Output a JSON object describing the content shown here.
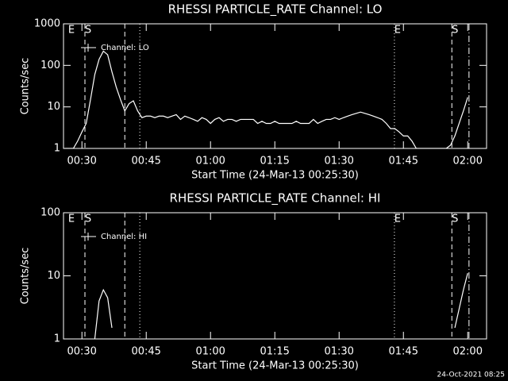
{
  "chart_data": [
    {
      "type": "line",
      "title": "RHESSI PARTICLE_RATE Channel: LO",
      "x_label": "Start Time (24-Mar-13 00:25:30)",
      "y_label": "Counts/sec",
      "ylog": true,
      "ylim": [
        1,
        1000
      ],
      "yticks": [
        1,
        10,
        100,
        1000
      ],
      "xlim": [
        25.7,
        124.4
      ],
      "xticks": [
        {
          "value": 30,
          "label": "00:30"
        },
        {
          "value": 45,
          "label": "00:45"
        },
        {
          "value": 60,
          "label": "01:00"
        },
        {
          "value": 75,
          "label": "01:15"
        },
        {
          "value": 90,
          "label": "01:30"
        },
        {
          "value": 105,
          "label": "01:45"
        },
        {
          "value": 120,
          "label": "02:00"
        }
      ],
      "legend": "upper left",
      "markers": [
        {
          "x": 26.8,
          "label": "E"
        },
        {
          "x": 30.7,
          "style": "dashed",
          "label": "S"
        },
        {
          "x": 40.0,
          "style": "dashed"
        },
        {
          "x": 43.5,
          "style": "dotted"
        },
        {
          "x": 102.9,
          "style": "dotted",
          "label": "E"
        },
        {
          "x": 116.3,
          "style": "dashed",
          "label": "S"
        },
        {
          "x": 120.3,
          "style": "dashdot"
        }
      ],
      "x": [
        26,
        27,
        28,
        29,
        30,
        31,
        32,
        33,
        34,
        35,
        36,
        37,
        38,
        39,
        40,
        41,
        42,
        43,
        44,
        45,
        46,
        47,
        48,
        49,
        50,
        51,
        52,
        53,
        54,
        55,
        56,
        57,
        58,
        59,
        60,
        61,
        62,
        63,
        64,
        65,
        66,
        67,
        68,
        69,
        70,
        71,
        72,
        73,
        74,
        75,
        76,
        77,
        78,
        79,
        80,
        81,
        82,
        83,
        84,
        85,
        86,
        87,
        88,
        89,
        90,
        91,
        92,
        93,
        94,
        95,
        96,
        97,
        98,
        99,
        100,
        101,
        102,
        103,
        104,
        105,
        106,
        107,
        108,
        109,
        110,
        111,
        112,
        113,
        114,
        115,
        116,
        117,
        118,
        119,
        120
      ],
      "series": [
        {
          "name": "Channel: LO",
          "color": "#ffffff",
          "values": [
            1,
            1,
            1,
            1.5,
            2.5,
            4,
            15,
            60,
            140,
            220,
            180,
            70,
            30,
            15,
            8,
            12,
            14,
            8,
            5.5,
            6,
            6,
            5.5,
            6,
            6,
            5.5,
            6,
            6.5,
            5,
            6,
            5.5,
            5,
            4.5,
            5.5,
            5,
            4,
            5,
            5.5,
            4.5,
            5,
            5,
            4.5,
            5,
            5,
            5,
            5,
            4,
            4.5,
            4,
            4,
            4.5,
            4,
            4,
            4,
            4,
            4.5,
            4,
            4,
            4,
            5,
            4,
            4.5,
            5,
            5,
            5.5,
            5,
            5.5,
            6,
            6.5,
            7,
            7.5,
            7,
            6.5,
            6,
            5.5,
            5,
            4,
            3,
            3,
            2.5,
            2,
            2,
            1.5,
            1,
            1,
            1,
            1,
            1,
            1,
            1,
            1,
            1.2,
            2,
            4,
            8,
            17
          ]
        }
      ]
    },
    {
      "type": "line",
      "title": "RHESSI PARTICLE_RATE Channel: HI",
      "x_label": "Start Time (24-Mar-13 00:25:30)",
      "y_label": "Counts/sec",
      "ylog": true,
      "ylim": [
        1,
        100
      ],
      "yticks": [
        1,
        10,
        100
      ],
      "xlim": [
        25.7,
        124.4
      ],
      "xticks": [
        {
          "value": 30,
          "label": "00:30"
        },
        {
          "value": 45,
          "label": "00:45"
        },
        {
          "value": 60,
          "label": "01:00"
        },
        {
          "value": 75,
          "label": "01:15"
        },
        {
          "value": 90,
          "label": "01:30"
        },
        {
          "value": 105,
          "label": "01:45"
        },
        {
          "value": 120,
          "label": "02:00"
        }
      ],
      "legend": "upper left",
      "markers": [
        {
          "x": 26.8,
          "label": "E"
        },
        {
          "x": 30.7,
          "style": "dashed",
          "label": "S"
        },
        {
          "x": 40.0,
          "style": "dashed"
        },
        {
          "x": 43.5,
          "style": "dotted"
        },
        {
          "x": 102.9,
          "style": "dotted",
          "label": "E"
        },
        {
          "x": 116.3,
          "style": "dashed",
          "label": "S"
        },
        {
          "x": 120.3,
          "style": "dashdot"
        }
      ],
      "x": [
        26,
        27,
        28,
        29,
        30,
        31,
        32,
        33,
        34,
        35,
        36,
        37,
        38,
        39,
        40,
        41,
        42,
        43,
        44,
        45,
        46,
        47,
        48,
        49,
        50,
        51,
        52,
        53,
        54,
        55,
        56,
        57,
        58,
        59,
        60,
        61,
        62,
        63,
        64,
        65,
        66,
        67,
        68,
        69,
        70,
        71,
        72,
        73,
        74,
        75,
        76,
        77,
        78,
        79,
        80,
        81,
        82,
        83,
        84,
        85,
        86,
        87,
        88,
        89,
        90,
        91,
        92,
        93,
        94,
        95,
        96,
        97,
        98,
        99,
        100,
        101,
        102,
        103,
        104,
        105,
        106,
        107,
        108,
        109,
        110,
        111,
        112,
        113,
        114,
        115,
        116,
        117,
        118,
        119,
        120
      ],
      "series": [
        {
          "name": "Channel: HI",
          "color": "#ffffff",
          "values": [
            null,
            null,
            null,
            null,
            null,
            null,
            null,
            1,
            4,
            6,
            4.5,
            1.5,
            null,
            null,
            null,
            null,
            null,
            null,
            null,
            null,
            null,
            null,
            null,
            null,
            null,
            null,
            null,
            null,
            null,
            null,
            null,
            null,
            null,
            null,
            null,
            null,
            null,
            null,
            null,
            null,
            null,
            null,
            null,
            null,
            null,
            null,
            null,
            null,
            null,
            null,
            null,
            null,
            null,
            null,
            null,
            null,
            null,
            null,
            null,
            null,
            null,
            null,
            null,
            null,
            null,
            null,
            null,
            null,
            null,
            null,
            null,
            null,
            null,
            null,
            null,
            null,
            null,
            null,
            null,
            null,
            null,
            null,
            null,
            null,
            null,
            null,
            null,
            null,
            null,
            null,
            null,
            1.5,
            3,
            6,
            11
          ]
        }
      ]
    }
  ],
  "footer": "24-Oct-2021 08:25"
}
